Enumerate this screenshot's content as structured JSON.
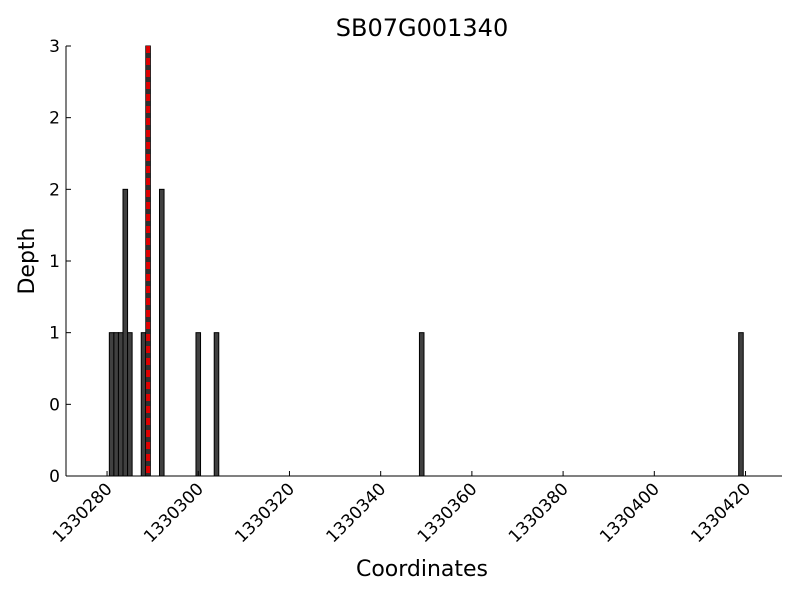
{
  "chart_data": {
    "type": "bar",
    "title": "SB07G001340",
    "xlabel": "Coordinates",
    "ylabel": "Depth",
    "xlim": [
      1330271,
      1330428
    ],
    "ylim": [
      0,
      3
    ],
    "x_ticks": [
      1330280,
      1330300,
      1330320,
      1330340,
      1330360,
      1330380,
      1330400,
      1330420
    ],
    "x_tick_labels": [
      "1330280",
      "1330300",
      "1330320",
      "1330340",
      "1330360",
      "1330380",
      "1330400",
      "1330420"
    ],
    "y_ticks": [
      0,
      0.5,
      1,
      1.5,
      2,
      2.5,
      3
    ],
    "y_tick_labels": [
      "0",
      "0",
      "1",
      "1",
      "2",
      "2",
      "3"
    ],
    "x": [
      1330281,
      1330282,
      1330283,
      1330284,
      1330285,
      1330288,
      1330289,
      1330292,
      1330300,
      1330304,
      1330349,
      1330419
    ],
    "values": [
      1,
      1,
      1,
      2,
      1,
      1,
      3,
      2,
      1,
      1,
      1,
      1
    ],
    "bar_color": "#404040",
    "marker": {
      "x": 1330289,
      "color_a": "#e00000",
      "color_b": "#303030"
    },
    "grid": false
  }
}
